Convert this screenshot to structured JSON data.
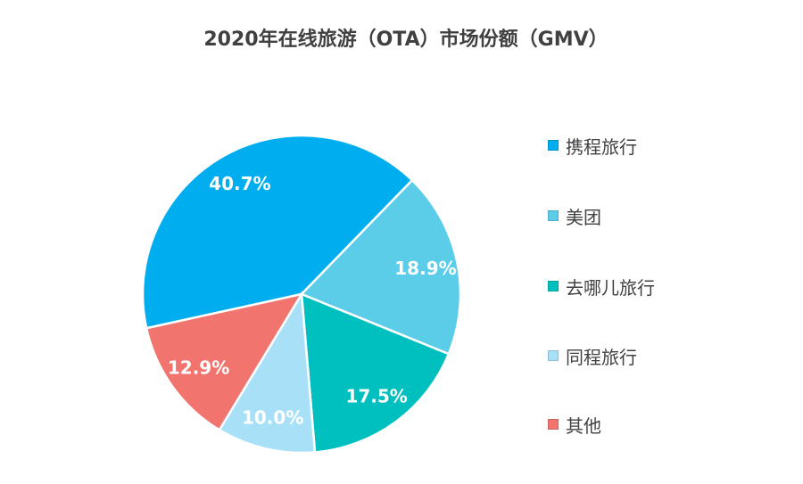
{
  "chart_data": {
    "type": "pie",
    "title": "2020年在线旅游（OTA）市场份额（GMV）",
    "unit": "%",
    "legend_position": "right",
    "slices": [
      {
        "name": "携程旅行",
        "value": 40.7,
        "label": "40.7%",
        "color": "#00AEEF"
      },
      {
        "name": "美团",
        "value": 18.9,
        "label": "18.9%",
        "color": "#5BCDE9"
      },
      {
        "name": "去哪儿旅行",
        "value": 17.5,
        "label": "17.5%",
        "color": "#00BFBF"
      },
      {
        "name": "同程旅行",
        "value": 10.0,
        "label": "10.0%",
        "color": "#A8E1F7"
      },
      {
        "name": "其他",
        "value": 12.9,
        "label": "12.9%",
        "color": "#F2746E"
      }
    ]
  }
}
